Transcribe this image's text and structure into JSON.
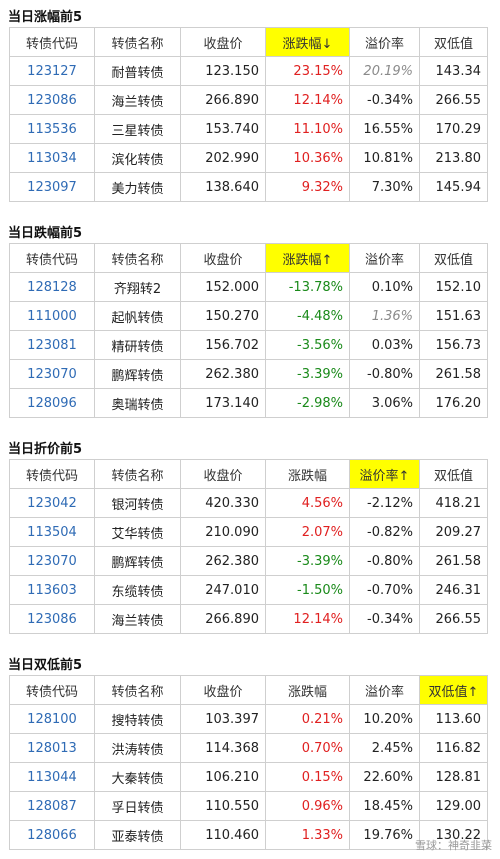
{
  "colors": {
    "highlight": "#ffff00",
    "up": "#e02020",
    "down": "#1a8a1a",
    "code": "#2f6bb5"
  },
  "headers": {
    "code": "转债代码",
    "name": "转债名称",
    "close": "收盘价",
    "change": "涨跌幅",
    "premium": "溢价率",
    "dual_low": "双低值"
  },
  "sections": [
    {
      "title": "当日涨幅前5",
      "headers": [
        "转债代码",
        "转债名称",
        "收盘价",
        "涨跌幅↓",
        "溢价率",
        "双低值"
      ],
      "highlight_col": 3,
      "rows": [
        {
          "code": "123127",
          "name": "耐普转债",
          "close": "123.150",
          "change": "23.15%",
          "premium": "20.19%",
          "dual_low": "143.34",
          "change_color": "red",
          "premium_style": "gray"
        },
        {
          "code": "123086",
          "name": "海兰转债",
          "close": "266.890",
          "change": "12.14%",
          "premium": "-0.34%",
          "dual_low": "266.55",
          "change_color": "red",
          "premium_style": ""
        },
        {
          "code": "113536",
          "name": "三星转债",
          "close": "153.740",
          "change": "11.10%",
          "premium": "16.55%",
          "dual_low": "170.29",
          "change_color": "red",
          "premium_style": ""
        },
        {
          "code": "113034",
          "name": "滨化转债",
          "close": "202.990",
          "change": "10.36%",
          "premium": "10.81%",
          "dual_low": "213.80",
          "change_color": "red",
          "premium_style": ""
        },
        {
          "code": "123097",
          "name": "美力转债",
          "close": "138.640",
          "change": "9.32%",
          "premium": "7.30%",
          "dual_low": "145.94",
          "change_color": "red",
          "premium_style": ""
        }
      ]
    },
    {
      "title": "当日跌幅前5",
      "headers": [
        "转债代码",
        "转债名称",
        "收盘价",
        "涨跌幅↑",
        "溢价率",
        "双低值"
      ],
      "highlight_col": 3,
      "rows": [
        {
          "code": "128128",
          "name": "齐翔转2",
          "close": "152.000",
          "change": "-13.78%",
          "premium": "0.10%",
          "dual_low": "152.10",
          "change_color": "green",
          "premium_style": ""
        },
        {
          "code": "111000",
          "name": "起帆转债",
          "close": "150.270",
          "change": "-4.48%",
          "premium": "1.36%",
          "dual_low": "151.63",
          "change_color": "green",
          "premium_style": "gray"
        },
        {
          "code": "123081",
          "name": "精研转债",
          "close": "156.702",
          "change": "-3.56%",
          "premium": "0.03%",
          "dual_low": "156.73",
          "change_color": "green",
          "premium_style": ""
        },
        {
          "code": "123070",
          "name": "鹏辉转债",
          "close": "262.380",
          "change": "-3.39%",
          "premium": "-0.80%",
          "dual_low": "261.58",
          "change_color": "green",
          "premium_style": ""
        },
        {
          "code": "128096",
          "name": "奥瑞转债",
          "close": "173.140",
          "change": "-2.98%",
          "premium": "3.06%",
          "dual_low": "176.20",
          "change_color": "green",
          "premium_style": ""
        }
      ]
    },
    {
      "title": "当日折价前5",
      "headers": [
        "转债代码",
        "转债名称",
        "收盘价",
        "涨跌幅",
        "溢价率↑",
        "双低值"
      ],
      "highlight_col": 4,
      "rows": [
        {
          "code": "123042",
          "name": "银河转债",
          "close": "420.330",
          "change": "4.56%",
          "premium": "-2.12%",
          "dual_low": "418.21",
          "change_color": "red",
          "premium_style": ""
        },
        {
          "code": "113504",
          "name": "艾华转债",
          "close": "210.090",
          "change": "2.07%",
          "premium": "-0.82%",
          "dual_low": "209.27",
          "change_color": "red",
          "premium_style": ""
        },
        {
          "code": "123070",
          "name": "鹏辉转债",
          "close": "262.380",
          "change": "-3.39%",
          "premium": "-0.80%",
          "dual_low": "261.58",
          "change_color": "green",
          "premium_style": ""
        },
        {
          "code": "113603",
          "name": "东缆转债",
          "close": "247.010",
          "change": "-1.50%",
          "premium": "-0.70%",
          "dual_low": "246.31",
          "change_color": "green",
          "premium_style": ""
        },
        {
          "code": "123086",
          "name": "海兰转债",
          "close": "266.890",
          "change": "12.14%",
          "premium": "-0.34%",
          "dual_low": "266.55",
          "change_color": "red",
          "premium_style": ""
        }
      ]
    },
    {
      "title": "当日双低前5",
      "headers": [
        "转债代码",
        "转债名称",
        "收盘价",
        "涨跌幅",
        "溢价率",
        "双低值↑"
      ],
      "highlight_col": 5,
      "rows": [
        {
          "code": "128100",
          "name": "搜特转债",
          "close": "103.397",
          "change": "0.21%",
          "premium": "10.20%",
          "dual_low": "113.60",
          "change_color": "red",
          "premium_style": ""
        },
        {
          "code": "128013",
          "name": "洪涛转债",
          "close": "114.368",
          "change": "0.70%",
          "premium": "2.45%",
          "dual_low": "116.82",
          "change_color": "red",
          "premium_style": ""
        },
        {
          "code": "113044",
          "name": "大秦转债",
          "close": "106.210",
          "change": "0.15%",
          "premium": "22.60%",
          "dual_low": "128.81",
          "change_color": "red",
          "premium_style": ""
        },
        {
          "code": "128087",
          "name": "孚日转债",
          "close": "110.550",
          "change": "0.96%",
          "premium": "18.45%",
          "dual_low": "129.00",
          "change_color": "red",
          "premium_style": ""
        },
        {
          "code": "128066",
          "name": "亚泰转债",
          "close": "110.460",
          "change": "1.33%",
          "premium": "19.76%",
          "dual_low": "130.22",
          "change_color": "red",
          "premium_style": ""
        }
      ]
    }
  ],
  "watermark": "雪球：神奇韭菜"
}
